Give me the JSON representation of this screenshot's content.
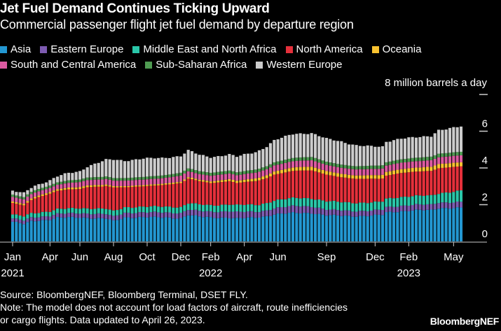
{
  "header": {
    "title": "Jet Fuel Demand Continues Ticking Upward",
    "subtitle": "Commercial passenger flight jet fuel demand by departure region"
  },
  "legend": [
    {
      "label": "Asia",
      "color": "#2397d1"
    },
    {
      "label": "Eastern Europe",
      "color": "#7d5bb1"
    },
    {
      "label": "Middle East and North Africa",
      "color": "#2ac7a9"
    },
    {
      "label": "North America",
      "color": "#e5303b"
    },
    {
      "label": "Oceania",
      "color": "#f9c230"
    },
    {
      "label": "South and Central America",
      "color": "#dc5aa1"
    },
    {
      "label": "Sub-Saharan Africa",
      "color": "#4f9b52"
    },
    {
      "label": "Western Europe",
      "color": "#cccccc"
    }
  ],
  "footer": {
    "source": "Source: BloombergNEF, Bloomberg Terminal, DSET FLY.",
    "note_line1": "Note: The model does not account for load factors of aircraft, route inefficiencies",
    "note_line2": "or cargo flights. Data updated to April 26, 2023.",
    "brand": "BloombergNEF"
  },
  "chart_data": {
    "type": "bar",
    "stacked": true,
    "title": "Jet Fuel Demand Continues Ticking Upward",
    "subtitle": "Commercial passenger flight jet fuel demand by departure region",
    "ylabel": "million barrels a day",
    "unit_label": "8 million barrels a day",
    "ylim": [
      0,
      8
    ],
    "yticks": [
      0,
      2,
      4,
      6,
      8
    ],
    "ytick_labels": [
      "0",
      "2",
      "4",
      "6",
      "8 million barrels a day"
    ],
    "y_axis_side": "right",
    "x_start": "2021-01-06",
    "x_frequency": "weekly",
    "n_weeks": 121,
    "xticks": [
      {
        "week": 0,
        "label": "Jan",
        "year": "2021"
      },
      {
        "week": 10,
        "label": "Apr",
        "year": ""
      },
      {
        "week": 18,
        "label": "Jun",
        "year": ""
      },
      {
        "week": 27,
        "label": "Aug",
        "year": ""
      },
      {
        "week": 36,
        "label": "Oct",
        "year": ""
      },
      {
        "week": 45,
        "label": "Dec",
        "year": ""
      },
      {
        "week": 53,
        "label": "Feb",
        "year": "2022"
      },
      {
        "week": 62,
        "label": "Apr",
        "year": ""
      },
      {
        "week": 71,
        "label": "Jun",
        "year": ""
      },
      {
        "week": 84,
        "label": "Sep",
        "year": ""
      },
      {
        "week": 97,
        "label": "Dec",
        "year": ""
      },
      {
        "week": 106,
        "label": "Feb",
        "year": "2023"
      },
      {
        "week": 118,
        "label": "May",
        "year": ""
      }
    ],
    "legend_position": "top",
    "grid": false,
    "series": [
      {
        "name": "Asia",
        "color": "#2397d1",
        "anchors": [
          [
            0,
            1.07
          ],
          [
            3,
            0.95
          ],
          [
            5,
            1.1
          ],
          [
            10,
            1.2
          ],
          [
            12,
            1.3
          ],
          [
            18,
            1.3
          ],
          [
            25,
            1.25
          ],
          [
            27,
            1.1
          ],
          [
            30,
            1.3
          ],
          [
            35,
            1.33
          ],
          [
            40,
            1.3
          ],
          [
            45,
            1.27
          ],
          [
            47,
            1.45
          ],
          [
            50,
            1.35
          ],
          [
            53,
            1.3
          ],
          [
            58,
            1.3
          ],
          [
            60,
            1.25
          ],
          [
            65,
            1.3
          ],
          [
            68,
            1.38
          ],
          [
            70,
            1.48
          ],
          [
            75,
            1.55
          ],
          [
            80,
            1.55
          ],
          [
            84,
            1.42
          ],
          [
            88,
            1.4
          ],
          [
            92,
            1.38
          ],
          [
            96,
            1.4
          ],
          [
            99,
            1.45
          ],
          [
            100,
            1.58
          ],
          [
            104,
            1.65
          ],
          [
            108,
            1.7
          ],
          [
            112,
            1.7
          ],
          [
            114,
            1.82
          ],
          [
            120,
            1.83
          ]
        ]
      },
      {
        "name": "Eastern Europe",
        "color": "#7d5bb1",
        "anchors": [
          [
            0,
            0.18
          ],
          [
            10,
            0.2
          ],
          [
            20,
            0.24
          ],
          [
            30,
            0.25
          ],
          [
            40,
            0.27
          ],
          [
            50,
            0.3
          ],
          [
            55,
            0.32
          ],
          [
            58,
            0.36
          ],
          [
            62,
            0.34
          ],
          [
            66,
            0.3
          ],
          [
            70,
            0.33
          ],
          [
            76,
            0.38
          ],
          [
            80,
            0.36
          ],
          [
            85,
            0.3
          ],
          [
            90,
            0.28
          ],
          [
            96,
            0.27
          ],
          [
            100,
            0.28
          ],
          [
            106,
            0.3
          ],
          [
            112,
            0.3
          ],
          [
            120,
            0.31
          ]
        ]
      },
      {
        "name": "Middle East and North Africa",
        "color": "#2ac7a9",
        "anchors": [
          [
            0,
            0.22
          ],
          [
            10,
            0.25
          ],
          [
            20,
            0.28
          ],
          [
            30,
            0.3
          ],
          [
            40,
            0.32
          ],
          [
            45,
            0.32
          ],
          [
            48,
            0.36
          ],
          [
            53,
            0.35
          ],
          [
            60,
            0.38
          ],
          [
            66,
            0.38
          ],
          [
            70,
            0.42
          ],
          [
            76,
            0.44
          ],
          [
            80,
            0.44
          ],
          [
            86,
            0.46
          ],
          [
            92,
            0.45
          ],
          [
            98,
            0.44
          ],
          [
            102,
            0.48
          ],
          [
            108,
            0.48
          ],
          [
            114,
            0.5
          ],
          [
            120,
            0.62
          ]
        ]
      },
      {
        "name": "North America",
        "color": "#e5303b",
        "anchors": [
          [
            0,
            0.62
          ],
          [
            3,
            0.6
          ],
          [
            6,
            0.8
          ],
          [
            10,
            0.95
          ],
          [
            15,
            1.05
          ],
          [
            18,
            1.05
          ],
          [
            20,
            1.15
          ],
          [
            24,
            1.2
          ],
          [
            27,
            1.3
          ],
          [
            30,
            1.1
          ],
          [
            35,
            1.1
          ],
          [
            40,
            1.18
          ],
          [
            45,
            1.3
          ],
          [
            47,
            1.33
          ],
          [
            50,
            1.28
          ],
          [
            53,
            1.22
          ],
          [
            58,
            1.25
          ],
          [
            60,
            1.2
          ],
          [
            65,
            1.3
          ],
          [
            68,
            1.35
          ],
          [
            70,
            1.4
          ],
          [
            75,
            1.48
          ],
          [
            80,
            1.52
          ],
          [
            84,
            1.45
          ],
          [
            88,
            1.35
          ],
          [
            92,
            1.3
          ],
          [
            96,
            1.3
          ],
          [
            99,
            1.25
          ],
          [
            100,
            1.26
          ],
          [
            104,
            1.3
          ],
          [
            108,
            1.32
          ],
          [
            112,
            1.35
          ],
          [
            114,
            1.36
          ],
          [
            120,
            1.33
          ]
        ]
      },
      {
        "name": "Oceania",
        "color": "#f9c230",
        "anchors": [
          [
            0,
            0.08
          ],
          [
            10,
            0.09
          ],
          [
            20,
            0.1
          ],
          [
            30,
            0.06
          ],
          [
            40,
            0.07
          ],
          [
            50,
            0.08
          ],
          [
            55,
            0.1
          ],
          [
            60,
            0.12
          ],
          [
            66,
            0.15
          ],
          [
            70,
            0.17
          ],
          [
            75,
            0.19
          ],
          [
            80,
            0.2
          ],
          [
            86,
            0.19
          ],
          [
            92,
            0.18
          ],
          [
            98,
            0.2
          ],
          [
            104,
            0.21
          ],
          [
            110,
            0.22
          ],
          [
            114,
            0.23
          ],
          [
            120,
            0.22
          ]
        ]
      },
      {
        "name": "South and Central America",
        "color": "#dc5aa1",
        "anchors": [
          [
            0,
            0.25
          ],
          [
            10,
            0.22
          ],
          [
            18,
            0.28
          ],
          [
            25,
            0.3
          ],
          [
            30,
            0.3
          ],
          [
            40,
            0.3
          ],
          [
            45,
            0.33
          ],
          [
            50,
            0.3
          ],
          [
            55,
            0.31
          ],
          [
            60,
            0.3
          ],
          [
            66,
            0.32
          ],
          [
            70,
            0.33
          ],
          [
            76,
            0.34
          ],
          [
            80,
            0.35
          ],
          [
            86,
            0.33
          ],
          [
            92,
            0.33
          ],
          [
            98,
            0.34
          ],
          [
            104,
            0.35
          ],
          [
            110,
            0.35
          ],
          [
            114,
            0.37
          ],
          [
            120,
            0.38
          ]
        ]
      },
      {
        "name": "Sub-Saharan Africa",
        "color": "#4f9b52",
        "anchors": [
          [
            0,
            0.12
          ],
          [
            10,
            0.13
          ],
          [
            20,
            0.14
          ],
          [
            30,
            0.14
          ],
          [
            40,
            0.15
          ],
          [
            50,
            0.16
          ],
          [
            60,
            0.16
          ],
          [
            70,
            0.17
          ],
          [
            80,
            0.18
          ],
          [
            90,
            0.17
          ],
          [
            100,
            0.18
          ],
          [
            110,
            0.19
          ],
          [
            120,
            0.19
          ]
        ]
      },
      {
        "name": "Western Europe",
        "color": "#cccccc",
        "anchors": [
          [
            0,
            0.2
          ],
          [
            3,
            0.22
          ],
          [
            6,
            0.25
          ],
          [
            10,
            0.28
          ],
          [
            15,
            0.4
          ],
          [
            18,
            0.45
          ],
          [
            20,
            0.6
          ],
          [
            24,
            0.85
          ],
          [
            27,
            1.0
          ],
          [
            30,
            0.95
          ],
          [
            35,
            1.0
          ],
          [
            40,
            0.95
          ],
          [
            45,
            0.92
          ],
          [
            47,
            0.98
          ],
          [
            50,
            0.88
          ],
          [
            53,
            0.85
          ],
          [
            58,
            0.88
          ],
          [
            60,
            0.85
          ],
          [
            65,
            0.95
          ],
          [
            68,
            1.08
          ],
          [
            70,
            1.2
          ],
          [
            75,
            1.3
          ],
          [
            80,
            1.3
          ],
          [
            84,
            1.25
          ],
          [
            88,
            1.25
          ],
          [
            92,
            1.15
          ],
          [
            96,
            1.05
          ],
          [
            99,
            1.0
          ],
          [
            100,
            1.12
          ],
          [
            104,
            1.15
          ],
          [
            108,
            1.1
          ],
          [
            112,
            1.12
          ],
          [
            114,
            1.3
          ],
          [
            120,
            1.37
          ]
        ]
      }
    ]
  }
}
